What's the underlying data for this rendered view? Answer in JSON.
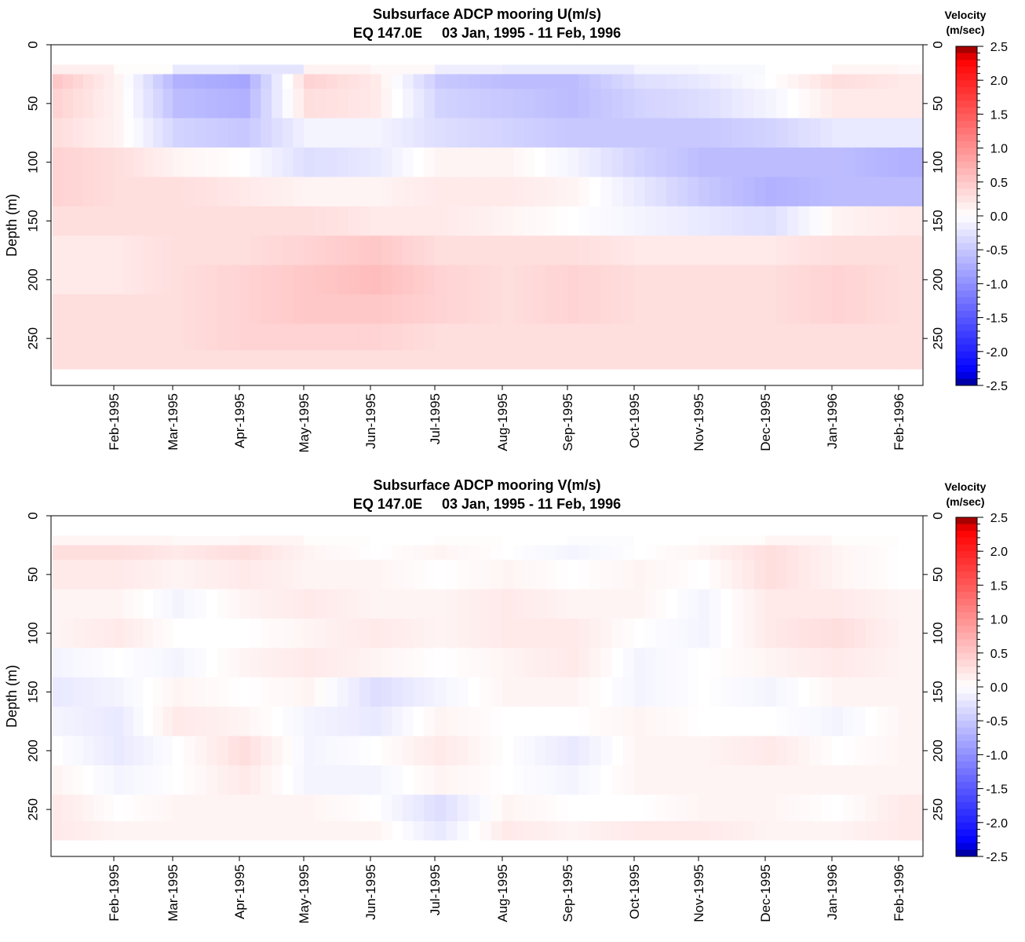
{
  "colors": {
    "neg_max": "#00008b",
    "neg": "#0000ff",
    "zero": "#ffffff",
    "pos": "#ff0000",
    "pos_max": "#8b0000"
  },
  "chart_data": [
    {
      "type": "heatmap",
      "title": "Subsurface ADCP mooring U(m/s)",
      "subtitle": "EQ 147.0E     03 Jan, 1995 - 11 Feb, 1996",
      "ylabel": "Depth (m)",
      "colorbar_title": "Velocity",
      "colorbar_unit": "(m/sec)",
      "y_ticks": [
        "0",
        "50",
        "100",
        "150",
        "200",
        "250"
      ],
      "x_ticks": [
        "Feb-1995",
        "Mar-1995",
        "Apr-1995",
        "May-1995",
        "Jun-1995",
        "Jul-1995",
        "Aug-1995",
        "Sep-1995",
        "Oct-1995",
        "Nov-1995",
        "Dec-1995",
        "Jan-1996",
        "Feb-1996"
      ],
      "colorbar_ticks": [
        "2.5",
        "2.0",
        "1.5",
        "1.0",
        "0.5",
        "0.0",
        "-0.5",
        "-1.0",
        "-1.5",
        "-2.0",
        "-2.5"
      ],
      "ylim": [
        0,
        290
      ],
      "clim": [
        -2.5,
        2.5
      ],
      "months": [
        "Jan-1995",
        "Feb-1995",
        "Mar-1995",
        "Apr-1995",
        "May-1995",
        "Jun-1995",
        "Jul-1995",
        "Aug-1995",
        "Sep-1995",
        "Oct-1995",
        "Nov-1995",
        "Dec-1995",
        "Jan-1996",
        "Feb-1996"
      ],
      "depths": [
        25,
        50,
        75,
        100,
        125,
        150,
        175,
        200,
        225,
        250,
        270
      ],
      "values": [
        [
          0.5,
          0.1,
          -0.7,
          -0.8,
          0.4,
          0.2,
          -0.5,
          -0.6,
          -0.6,
          -0.3,
          -0.2,
          0.0,
          0.3,
          0.2
        ],
        [
          0.4,
          0.1,
          -0.6,
          -0.7,
          0.3,
          0.2,
          -0.4,
          -0.5,
          -0.6,
          -0.4,
          -0.3,
          -0.1,
          0.2,
          0.2
        ],
        [
          0.3,
          0.1,
          -0.4,
          -0.5,
          -0.1,
          -0.1,
          -0.3,
          -0.4,
          -0.5,
          -0.5,
          -0.5,
          -0.4,
          -0.2,
          -0.2
        ],
        [
          0.4,
          0.3,
          0.1,
          0.0,
          -0.3,
          -0.2,
          0.1,
          0.1,
          -0.1,
          -0.4,
          -0.6,
          -0.6,
          -0.6,
          -0.7
        ],
        [
          0.4,
          0.3,
          0.3,
          0.2,
          0.1,
          0.1,
          0.2,
          0.2,
          0.1,
          -0.2,
          -0.5,
          -0.7,
          -0.6,
          -0.6
        ],
        [
          0.3,
          0.3,
          0.3,
          0.3,
          0.3,
          0.2,
          0.2,
          0.1,
          0.0,
          -0.1,
          -0.2,
          -0.3,
          0.1,
          0.2
        ],
        [
          0.2,
          0.2,
          0.3,
          0.3,
          0.4,
          0.5,
          0.3,
          0.3,
          0.3,
          0.2,
          0.2,
          0.2,
          0.3,
          0.3
        ],
        [
          0.2,
          0.2,
          0.3,
          0.4,
          0.5,
          0.6,
          0.4,
          0.3,
          0.4,
          0.3,
          0.3,
          0.3,
          0.4,
          0.3
        ],
        [
          0.3,
          0.3,
          0.3,
          0.4,
          0.5,
          0.5,
          0.4,
          0.3,
          0.4,
          0.3,
          0.3,
          0.3,
          0.4,
          0.3
        ],
        [
          0.3,
          0.3,
          0.3,
          0.4,
          0.4,
          0.4,
          0.3,
          0.3,
          0.3,
          0.3,
          0.3,
          0.3,
          0.3,
          0.3
        ],
        [
          0.3,
          0.3,
          0.3,
          0.3,
          0.3,
          0.3,
          0.3,
          0.3,
          0.3,
          0.3,
          0.3,
          0.3,
          0.3,
          0.3
        ]
      ]
    },
    {
      "type": "heatmap",
      "title": "Subsurface ADCP mooring V(m/s)",
      "subtitle": "EQ 147.0E     03 Jan, 1995 - 11 Feb, 1996",
      "ylabel": "Depth (m)",
      "colorbar_title": "Velocity",
      "colorbar_unit": "(m/sec)",
      "y_ticks": [
        "0",
        "50",
        "100",
        "150",
        "200",
        "250"
      ],
      "x_ticks": [
        "Feb-1995",
        "Mar-1995",
        "Apr-1995",
        "May-1995",
        "Jun-1995",
        "Jul-1995",
        "Aug-1995",
        "Sep-1995",
        "Oct-1995",
        "Nov-1995",
        "Dec-1995",
        "Jan-1996",
        "Feb-1996"
      ],
      "colorbar_ticks": [
        "2.5",
        "2.0",
        "1.5",
        "1.0",
        "0.5",
        "0.0",
        "-0.5",
        "-1.0",
        "-1.5",
        "-2.0",
        "-2.5"
      ],
      "ylim": [
        0,
        290
      ],
      "clim": [
        -2.5,
        2.5
      ],
      "months": [
        "Jan-1995",
        "Feb-1995",
        "Mar-1995",
        "Apr-1995",
        "May-1995",
        "Jun-1995",
        "Jul-1995",
        "Aug-1995",
        "Sep-1995",
        "Oct-1995",
        "Nov-1995",
        "Dec-1995",
        "Jan-1996",
        "Feb-1996"
      ],
      "depths": [
        25,
        50,
        75,
        100,
        125,
        150,
        175,
        200,
        225,
        250,
        270
      ],
      "values": [
        [
          0.3,
          0.3,
          0.2,
          0.3,
          0.1,
          0.0,
          0.1,
          0.0,
          -0.1,
          0.0,
          0.1,
          0.3,
          0.1,
          0.0
        ],
        [
          0.2,
          0.2,
          0.1,
          0.2,
          0.1,
          0.1,
          0.0,
          0.1,
          0.0,
          0.1,
          0.0,
          0.3,
          0.1,
          0.0
        ],
        [
          0.1,
          0.1,
          -0.1,
          0.1,
          0.2,
          0.1,
          0.1,
          0.2,
          0.1,
          0.1,
          -0.1,
          0.2,
          0.2,
          0.1
        ],
        [
          0.1,
          0.2,
          0.0,
          0.0,
          0.1,
          0.2,
          0.1,
          0.2,
          0.2,
          0.0,
          -0.1,
          0.2,
          0.3,
          0.1
        ],
        [
          -0.1,
          0.0,
          -0.1,
          0.1,
          0.2,
          0.1,
          0.0,
          0.1,
          0.2,
          -0.1,
          0.0,
          0.1,
          0.2,
          0.1
        ],
        [
          -0.2,
          -0.1,
          0.1,
          0.0,
          0.1,
          -0.3,
          -0.1,
          0.1,
          0.1,
          -0.1,
          0.0,
          -0.1,
          0.1,
          0.1
        ],
        [
          -0.1,
          -0.2,
          0.2,
          0.1,
          -0.1,
          -0.2,
          0.1,
          0.0,
          0.0,
          0.1,
          0.0,
          0.0,
          -0.1,
          0.1
        ],
        [
          0.0,
          -0.2,
          0.0,
          0.3,
          -0.1,
          0.0,
          0.2,
          0.0,
          -0.2,
          0.1,
          0.1,
          0.2,
          0.0,
          0.1
        ],
        [
          0.1,
          -0.1,
          0.0,
          0.2,
          -0.1,
          -0.1,
          0.1,
          0.0,
          -0.1,
          0.1,
          0.1,
          0.1,
          0.1,
          0.1
        ],
        [
          0.2,
          0.0,
          0.1,
          0.1,
          0.1,
          0.0,
          -0.3,
          0.1,
          0.0,
          0.0,
          0.1,
          0.1,
          0.0,
          0.2
        ],
        [
          0.2,
          0.1,
          0.1,
          0.1,
          0.1,
          0.1,
          -0.2,
          0.2,
          0.1,
          0.2,
          0.2,
          0.1,
          0.1,
          0.2
        ]
      ]
    }
  ]
}
